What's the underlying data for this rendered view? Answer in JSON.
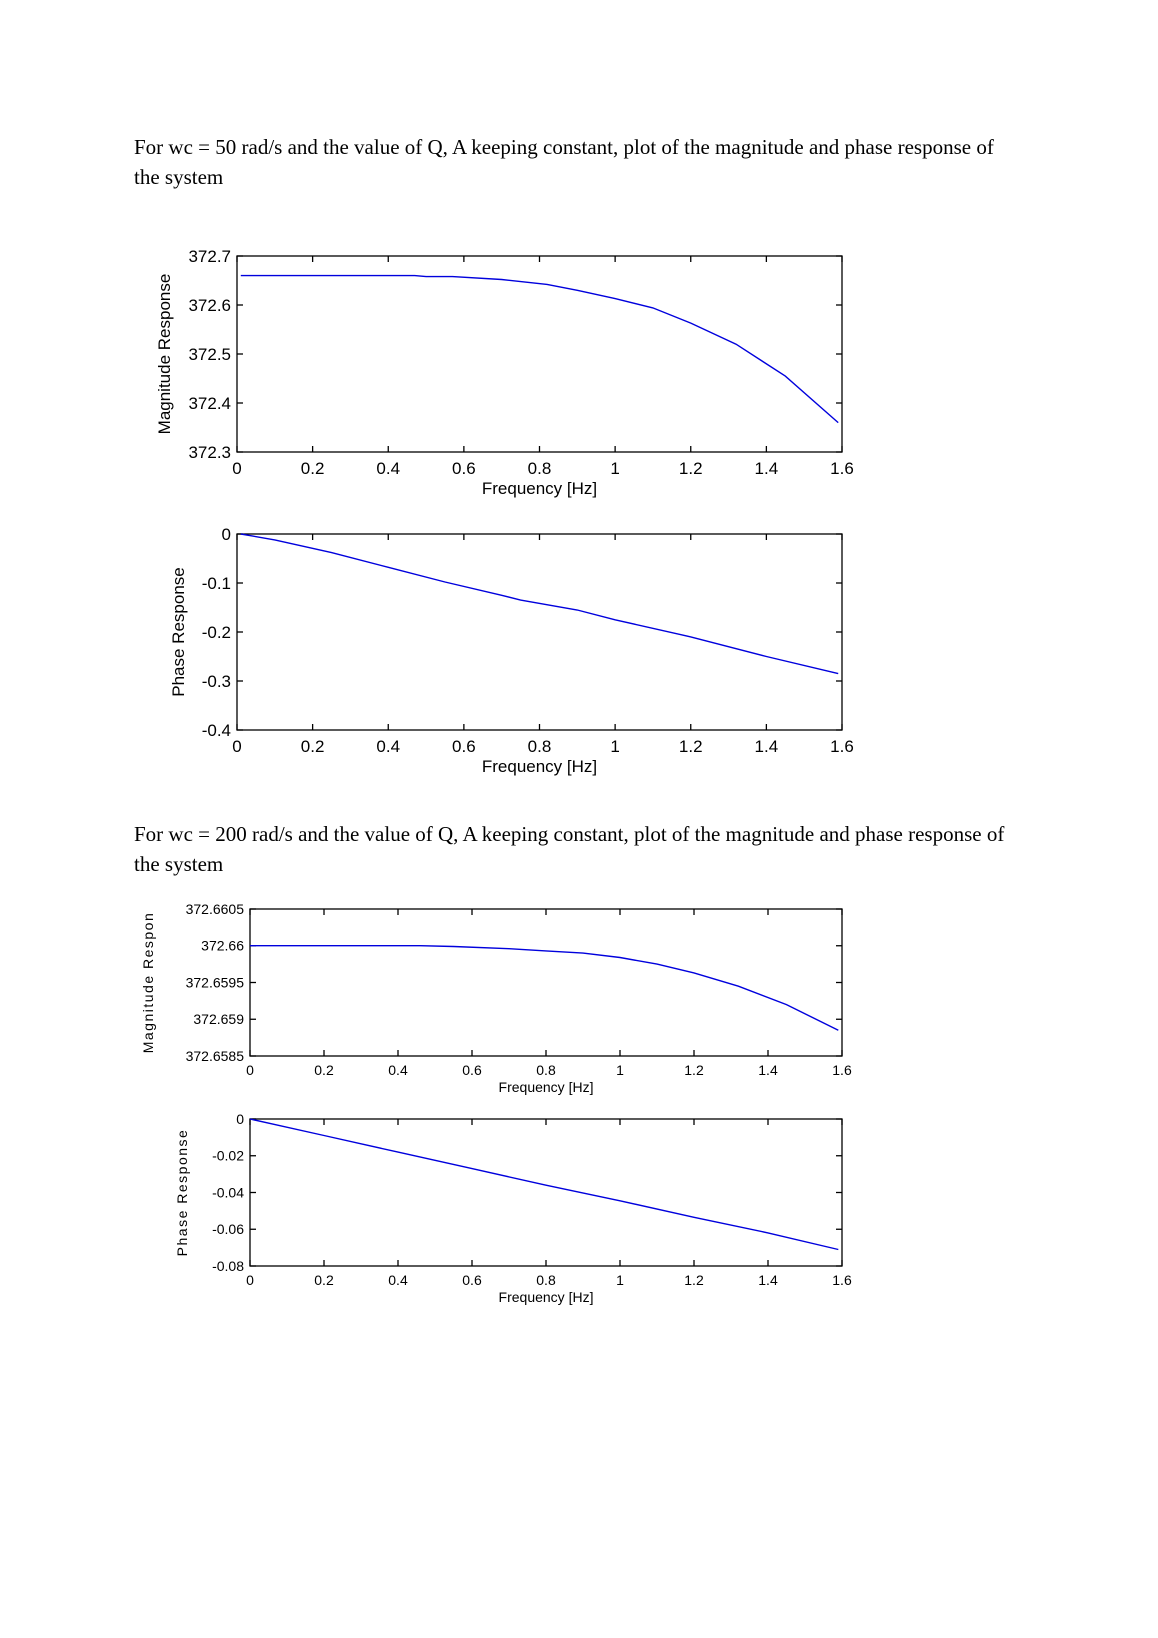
{
  "paragraphs": [
    "For wc = 50 rad/s and the value of Q, A keeping constant, plot of the magnitude and phase response of the system",
    "For wc = 200 rad/s and the value of Q, A keeping constant, plot of the magnitude and phase response of the system"
  ],
  "line_color": "#0000dd",
  "chart_data": [
    {
      "type": "line",
      "xlabel": "Frequency [Hz]",
      "ylabel": "Magnitude Response",
      "xlim": [
        0,
        1.6
      ],
      "ylim": [
        372.3,
        372.7
      ],
      "xticks": [
        "0",
        "0.2",
        "0.4",
        "0.6",
        "0.8",
        "1",
        "1.2",
        "1.4",
        "1.6"
      ],
      "yticks": [
        "372.3",
        "372.4",
        "372.5",
        "372.6",
        "372.7"
      ],
      "grid": false,
      "x": [
        0.01,
        0.47,
        0.5,
        0.57,
        0.7,
        0.82,
        0.9,
        1.0,
        1.1,
        1.2,
        1.32,
        1.45,
        1.59
      ],
      "y": [
        372.66,
        372.66,
        372.658,
        372.658,
        372.652,
        372.642,
        372.63,
        372.613,
        372.594,
        372.563,
        372.52,
        372.455,
        372.36
      ]
    },
    {
      "type": "line",
      "xlabel": "Frequency [Hz]",
      "ylabel": "Phase Response",
      "xlim": [
        0,
        1.6
      ],
      "ylim": [
        -0.4,
        0
      ],
      "xticks": [
        "0",
        "0.2",
        "0.4",
        "0.6",
        "0.8",
        "1",
        "1.2",
        "1.4",
        "1.6"
      ],
      "yticks": [
        "-0.4",
        "-0.3",
        "-0.2",
        "-0.1",
        "0"
      ],
      "grid": false,
      "x": [
        0.01,
        0.1,
        0.25,
        0.4,
        0.55,
        0.7,
        0.75,
        0.9,
        1.0,
        1.2,
        1.4,
        1.59
      ],
      "y": [
        0,
        -0.012,
        -0.038,
        -0.068,
        -0.098,
        -0.125,
        -0.135,
        -0.155,
        -0.175,
        -0.21,
        -0.25,
        -0.285
      ]
    },
    {
      "type": "line",
      "xlabel": "Frequency [Hz]",
      "ylabel": "Magnitude Respon",
      "xlim": [
        0,
        1.6
      ],
      "ylim": [
        372.6585,
        372.6605
      ],
      "xticks": [
        "0",
        "0.2",
        "0.4",
        "0.6",
        "0.8",
        "1",
        "1.2",
        "1.4",
        "1.6"
      ],
      "yticks": [
        "372.6585",
        "372.659",
        "372.6595",
        "372.66",
        "372.6605"
      ],
      "grid": false,
      "x": [
        0,
        0.46,
        0.55,
        0.7,
        0.8,
        0.9,
        1.0,
        1.1,
        1.2,
        1.32,
        1.45,
        1.59
      ],
      "y": [
        372.66,
        372.66,
        372.65999,
        372.65996,
        372.65993,
        372.6599,
        372.65984,
        372.65975,
        372.65963,
        372.65945,
        372.6592,
        372.65885
      ]
    },
    {
      "type": "line",
      "xlabel": "Frequency [Hz]",
      "ylabel": "Phase Response",
      "xlim": [
        0,
        1.6
      ],
      "ylim": [
        -0.08,
        0
      ],
      "xticks": [
        "0",
        "0.2",
        "0.4",
        "0.6",
        "0.8",
        "1",
        "1.2",
        "1.4",
        "1.6"
      ],
      "yticks": [
        "-0.08",
        "-0.06",
        "-0.04",
        "-0.02",
        "0"
      ],
      "grid": false,
      "x": [
        0,
        0.2,
        0.4,
        0.6,
        0.8,
        1.0,
        1.2,
        1.4,
        1.59
      ],
      "y": [
        0,
        -0.009,
        -0.018,
        -0.027,
        -0.036,
        -0.0445,
        -0.0535,
        -0.062,
        -0.071
      ]
    }
  ]
}
